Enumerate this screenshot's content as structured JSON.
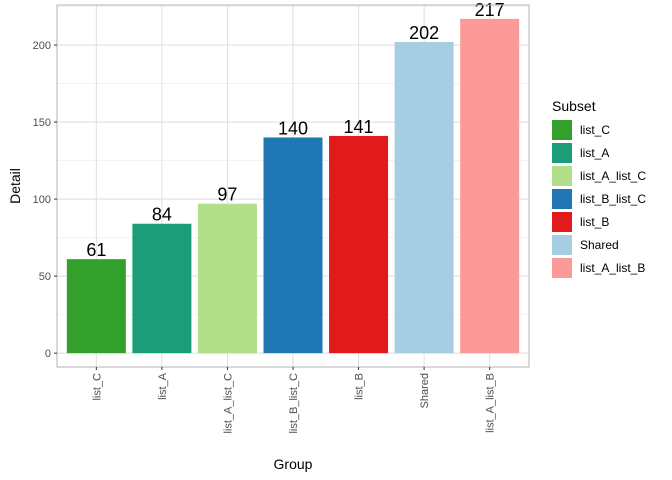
{
  "chart_data": {
    "type": "bar",
    "xlabel": "Group",
    "ylabel": "Detail",
    "ylim": [
      -9,
      226
    ],
    "yticks": [
      0,
      50,
      100,
      150,
      200
    ],
    "grid": true,
    "legend_position": "right",
    "legend_title": "Subset",
    "categories": [
      "list_C",
      "list_A",
      "list_A_list_C",
      "list_B_list_C",
      "list_B",
      "Shared",
      "list_A_list_B"
    ],
    "values": [
      61,
      84,
      97,
      140,
      141,
      202,
      217
    ],
    "colors": [
      "#33a02c",
      "#1b9e77",
      "#b2df8a",
      "#1f78b4",
      "#e31a1c",
      "#a6cee3",
      "#fb9a99"
    ],
    "legend": [
      {
        "label": "list_C",
        "color": "#33a02c"
      },
      {
        "label": "list_A",
        "color": "#1b9e77"
      },
      {
        "label": "list_A_list_C",
        "color": "#b2df8a"
      },
      {
        "label": "list_B_list_C",
        "color": "#1f78b4"
      },
      {
        "label": "list_B",
        "color": "#e31a1c"
      },
      {
        "label": "Shared",
        "color": "#a6cee3"
      },
      {
        "label": "list_A_list_B",
        "color": "#fb9a99"
      }
    ]
  }
}
